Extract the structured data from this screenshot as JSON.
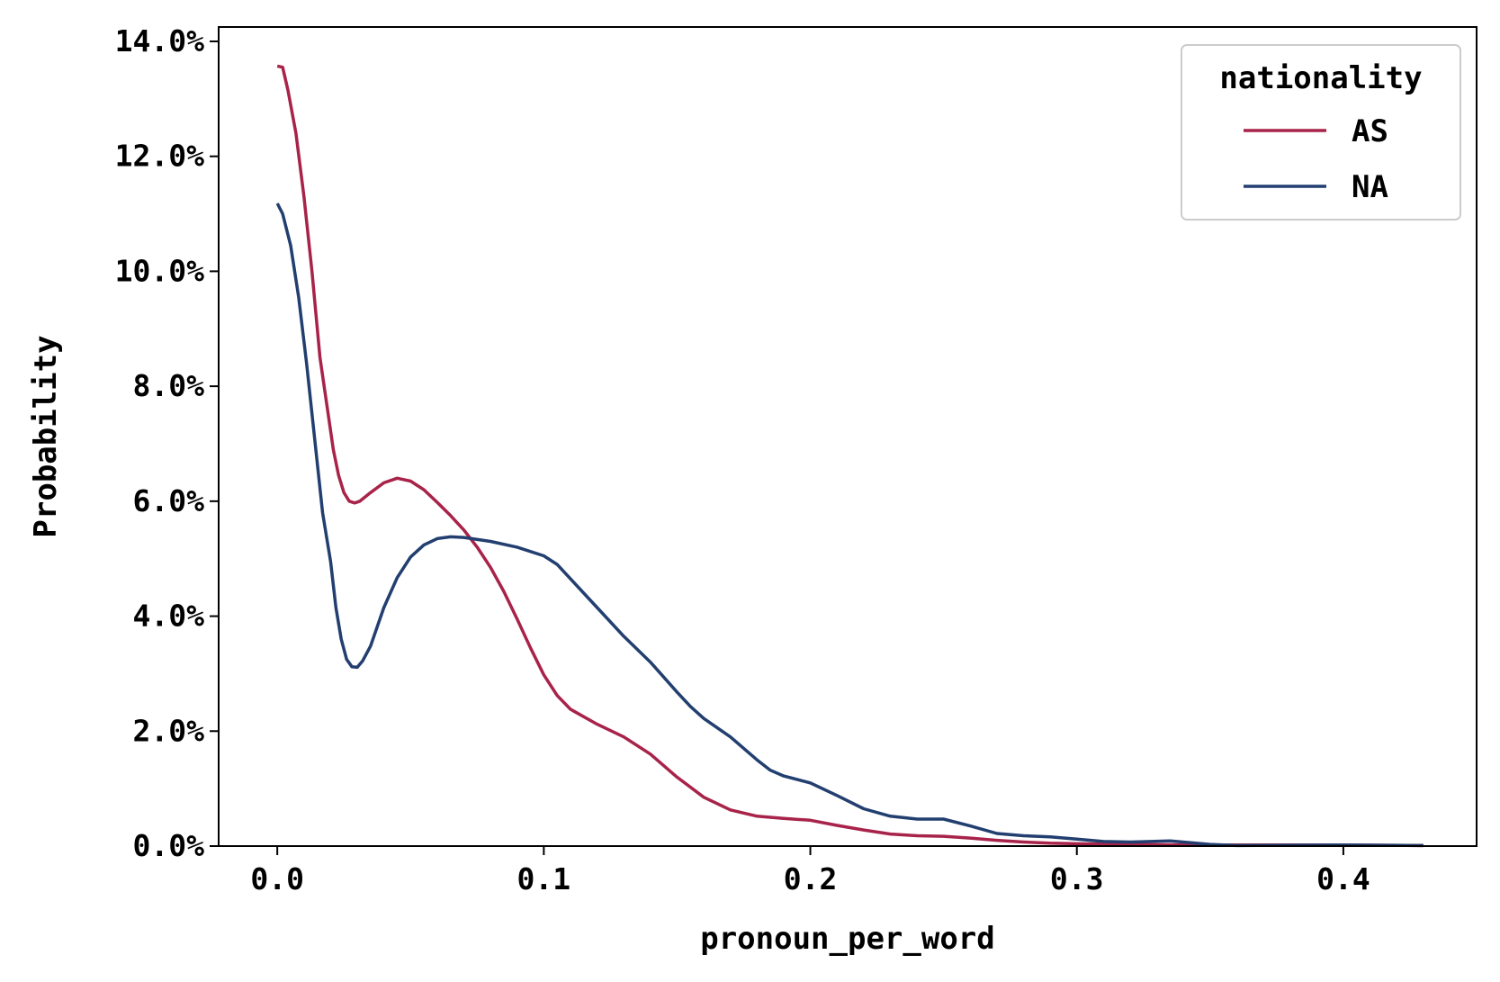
{
  "chart_data": {
    "type": "line",
    "xlabel": "pronoun_per_word",
    "ylabel": "Probability",
    "xlim": [
      -0.022,
      0.45
    ],
    "ylim": [
      0,
      0.1425
    ],
    "x_ticks": [
      0.0,
      0.1,
      0.2,
      0.3,
      0.4
    ],
    "x_tick_labels": [
      "0.0",
      "0.1",
      "0.2",
      "0.3",
      "0.4"
    ],
    "y_ticks": [
      0.0,
      0.02,
      0.04,
      0.06,
      0.08,
      0.1,
      0.12,
      0.14
    ],
    "y_tick_labels": [
      "0.0%",
      "2.0%",
      "4.0%",
      "6.0%",
      "8.0%",
      "10.0%",
      "12.0%",
      "14.0%"
    ],
    "grid": false,
    "legend": {
      "title": "nationality",
      "placement": "top-right"
    },
    "series": [
      {
        "name": "AS",
        "color": "#a8234a",
        "points": [
          [
            0.0,
            0.1357
          ],
          [
            0.002,
            0.1355
          ],
          [
            0.004,
            0.1315
          ],
          [
            0.007,
            0.124
          ],
          [
            0.01,
            0.113
          ],
          [
            0.013,
            0.1
          ],
          [
            0.016,
            0.085
          ],
          [
            0.019,
            0.0755
          ],
          [
            0.021,
            0.069
          ],
          [
            0.023,
            0.0645
          ],
          [
            0.025,
            0.0615
          ],
          [
            0.027,
            0.06
          ],
          [
            0.029,
            0.0597
          ],
          [
            0.031,
            0.06
          ],
          [
            0.035,
            0.0615
          ],
          [
            0.04,
            0.0632
          ],
          [
            0.045,
            0.064
          ],
          [
            0.05,
            0.0635
          ],
          [
            0.055,
            0.062
          ],
          [
            0.06,
            0.0598
          ],
          [
            0.065,
            0.0575
          ],
          [
            0.07,
            0.055
          ],
          [
            0.075,
            0.052
          ],
          [
            0.08,
            0.0485
          ],
          [
            0.085,
            0.0443
          ],
          [
            0.09,
            0.0395
          ],
          [
            0.095,
            0.0345
          ],
          [
            0.1,
            0.0298
          ],
          [
            0.105,
            0.0262
          ],
          [
            0.11,
            0.0238
          ],
          [
            0.12,
            0.0212
          ],
          [
            0.13,
            0.019
          ],
          [
            0.14,
            0.016
          ],
          [
            0.15,
            0.012
          ],
          [
            0.16,
            0.0085
          ],
          [
            0.17,
            0.0063
          ],
          [
            0.18,
            0.0052
          ],
          [
            0.19,
            0.0048
          ],
          [
            0.2,
            0.0045
          ],
          [
            0.21,
            0.0036
          ],
          [
            0.22,
            0.0028
          ],
          [
            0.23,
            0.0021
          ],
          [
            0.24,
            0.0018
          ],
          [
            0.25,
            0.0017
          ],
          [
            0.26,
            0.0014
          ],
          [
            0.27,
            0.001
          ],
          [
            0.28,
            0.0007
          ],
          [
            0.29,
            0.0005
          ],
          [
            0.3,
            0.0004
          ],
          [
            0.32,
            0.0003
          ],
          [
            0.34,
            0.0002
          ],
          [
            0.36,
            0.0002
          ],
          [
            0.38,
            0.0002
          ],
          [
            0.4,
            0.0002
          ],
          [
            0.43,
            0.0001
          ]
        ]
      },
      {
        "name": "NA",
        "color": "#223f70",
        "points": [
          [
            0.0,
            0.1118
          ],
          [
            0.002,
            0.11
          ],
          [
            0.005,
            0.1045
          ],
          [
            0.008,
            0.0955
          ],
          [
            0.011,
            0.084
          ],
          [
            0.014,
            0.071
          ],
          [
            0.017,
            0.058
          ],
          [
            0.02,
            0.0495
          ],
          [
            0.022,
            0.0415
          ],
          [
            0.024,
            0.036
          ],
          [
            0.026,
            0.0325
          ],
          [
            0.028,
            0.0312
          ],
          [
            0.03,
            0.0311
          ],
          [
            0.032,
            0.0322
          ],
          [
            0.035,
            0.0348
          ],
          [
            0.04,
            0.0415
          ],
          [
            0.045,
            0.0467
          ],
          [
            0.05,
            0.0503
          ],
          [
            0.055,
            0.0524
          ],
          [
            0.06,
            0.0535
          ],
          [
            0.065,
            0.0538
          ],
          [
            0.07,
            0.0537
          ],
          [
            0.08,
            0.053
          ],
          [
            0.09,
            0.052
          ],
          [
            0.1,
            0.0505
          ],
          [
            0.105,
            0.049
          ],
          [
            0.11,
            0.0465
          ],
          [
            0.12,
            0.0415
          ],
          [
            0.13,
            0.0365
          ],
          [
            0.14,
            0.032
          ],
          [
            0.15,
            0.0268
          ],
          [
            0.155,
            0.0243
          ],
          [
            0.16,
            0.0222
          ],
          [
            0.17,
            0.019
          ],
          [
            0.18,
            0.015
          ],
          [
            0.185,
            0.0132
          ],
          [
            0.19,
            0.0122
          ],
          [
            0.2,
            0.011
          ],
          [
            0.21,
            0.0088
          ],
          [
            0.22,
            0.0065
          ],
          [
            0.23,
            0.0052
          ],
          [
            0.24,
            0.0047
          ],
          [
            0.25,
            0.0047
          ],
          [
            0.26,
            0.0035
          ],
          [
            0.27,
            0.0022
          ],
          [
            0.28,
            0.0018
          ],
          [
            0.29,
            0.0016
          ],
          [
            0.3,
            0.0012
          ],
          [
            0.31,
            0.0008
          ],
          [
            0.32,
            0.0007
          ],
          [
            0.335,
            0.0009
          ],
          [
            0.35,
            0.0003
          ],
          [
            0.36,
            0.0001
          ],
          [
            0.4,
            0.0002
          ],
          [
            0.43,
            0.0001
          ]
        ]
      }
    ]
  }
}
